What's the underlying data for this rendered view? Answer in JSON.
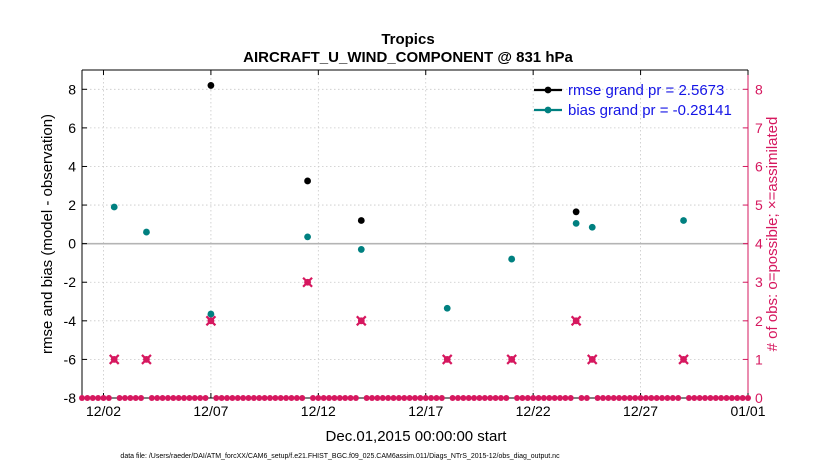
{
  "chart_data": {
    "type": "scatter",
    "title": "Tropics",
    "subtitle": "AIRCRAFT_U_WIND_COMPONENT @ 831 hPa",
    "xlabel": "Dec.01,2015 00:00:00 start",
    "ylabel": "rmse and bias (model - observation)",
    "ylabel_right": "# of obs: o=possible; ×=assimilated",
    "xlim": [
      1,
      32
    ],
    "ylim": [
      -8,
      9
    ],
    "ylim_right": [
      0,
      8.5
    ],
    "x_ticks": [
      {
        "value": 2,
        "label": "12/02"
      },
      {
        "value": 7,
        "label": "12/07"
      },
      {
        "value": 12,
        "label": "12/12"
      },
      {
        "value": 17,
        "label": "12/17"
      },
      {
        "value": 22,
        "label": "12/22"
      },
      {
        "value": 27,
        "label": "12/27"
      },
      {
        "value": 32,
        "label": "01/01"
      }
    ],
    "y_ticks": [
      -8,
      -6,
      -4,
      -2,
      0,
      2,
      4,
      6,
      8
    ],
    "y_ticks_right": [
      0,
      1,
      2,
      3,
      4,
      5,
      6,
      7,
      8
    ],
    "grid": true,
    "legend_position": "top-right",
    "series": [
      {
        "name": "rmse grand pr = 2.5673",
        "color": "#000000",
        "axis": "left",
        "marker": "circle",
        "points": [
          [
            7,
            8.2
          ],
          [
            11.5,
            3.25
          ],
          [
            14,
            1.2
          ],
          [
            24,
            1.65
          ]
        ]
      },
      {
        "name": "bias grand pr = -0.28141",
        "color": "#008080",
        "axis": "left",
        "marker": "circle",
        "points": [
          [
            2.5,
            1.9
          ],
          [
            4,
            0.6
          ],
          [
            7,
            -3.65
          ],
          [
            11.5,
            0.35
          ],
          [
            14,
            -0.3
          ],
          [
            18,
            -3.35
          ],
          [
            21,
            -0.8
          ],
          [
            24,
            1.05
          ],
          [
            24.75,
            0.85
          ],
          [
            29,
            1.2
          ]
        ]
      },
      {
        "name": "possible",
        "color": "#d6185f",
        "axis": "right",
        "marker": "circle",
        "points": [
          [
            2.5,
            1
          ],
          [
            4,
            1
          ],
          [
            7,
            2
          ],
          [
            11.5,
            3
          ],
          [
            14,
            2
          ],
          [
            18,
            1
          ],
          [
            21,
            1
          ],
          [
            24,
            2
          ],
          [
            24.75,
            1
          ],
          [
            29,
            1
          ]
        ]
      },
      {
        "name": "assimilated",
        "color": "#d6185f",
        "axis": "right",
        "marker": "x",
        "points": [
          [
            2.5,
            1
          ],
          [
            4,
            1
          ],
          [
            7,
            2
          ],
          [
            11.5,
            3
          ],
          [
            14,
            2
          ],
          [
            18,
            1
          ],
          [
            21,
            1
          ],
          [
            24,
            2
          ],
          [
            24.75,
            1
          ],
          [
            29,
            1
          ]
        ]
      }
    ],
    "zero_count_x_start": 1,
    "zero_count_x_end": 32,
    "zero_count_x_step": 0.25,
    "footer": "data file: /Users/raeder/DAI/ATM_forcXX/CAM6_setup/f.e21.FHIST_BGC.f09_025.CAM6assim.011/Diags_NTrS_2015-12/obs_diag_output.nc"
  }
}
